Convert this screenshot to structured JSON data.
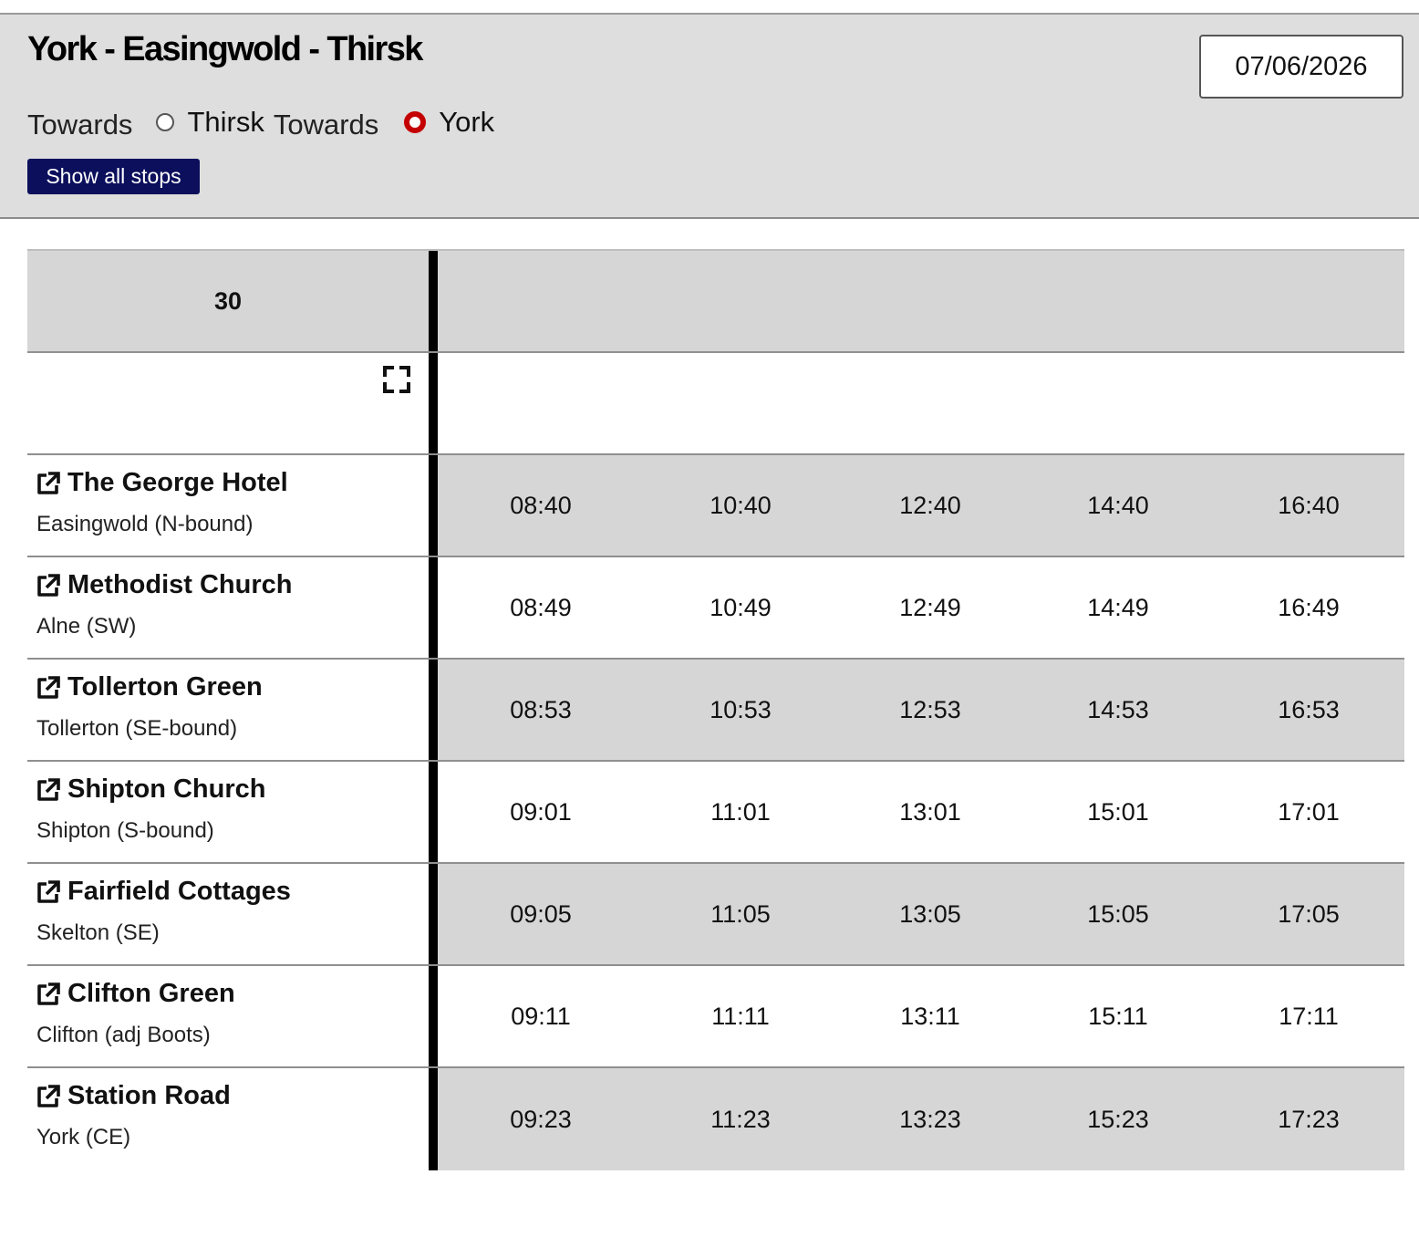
{
  "header": {
    "title": "York - Easingwold - Thirsk",
    "date_value": "07/06/2026",
    "direction_label": "Towards",
    "options": [
      {
        "label": "Thirsk",
        "selected": false
      },
      {
        "label": "York",
        "selected": true
      }
    ],
    "show_all_stops_label": "Show all stops"
  },
  "timetable": {
    "service_number": "30",
    "stops": [
      {
        "name": "The George Hotel",
        "locality": "Easingwold (N-bound)",
        "times": [
          "08:40",
          "10:40",
          "12:40",
          "14:40",
          "16:40"
        ]
      },
      {
        "name": "Methodist Church",
        "locality": "Alne (SW)",
        "times": [
          "08:49",
          "10:49",
          "12:49",
          "14:49",
          "16:49"
        ]
      },
      {
        "name": "Tollerton Green",
        "locality": "Tollerton (SE-bound)",
        "times": [
          "08:53",
          "10:53",
          "12:53",
          "14:53",
          "16:53"
        ]
      },
      {
        "name": "Shipton Church",
        "locality": "Shipton (S-bound)",
        "times": [
          "09:01",
          "11:01",
          "13:01",
          "15:01",
          "17:01"
        ]
      },
      {
        "name": "Fairfield Cottages",
        "locality": "Skelton (SE)",
        "times": [
          "09:05",
          "11:05",
          "13:05",
          "15:05",
          "17:05"
        ]
      },
      {
        "name": "Clifton Green",
        "locality": "Clifton (adj Boots)",
        "times": [
          "09:11",
          "11:11",
          "13:11",
          "15:11",
          "17:11"
        ]
      },
      {
        "name": "Station Road",
        "locality": "York (CE)",
        "times": [
          "09:23",
          "11:23",
          "13:23",
          "15:23",
          "17:23"
        ]
      }
    ]
  },
  "icons": {
    "stop_link": "external-link-icon",
    "expand": "fullscreen-icon"
  },
  "colors": {
    "button_bg": "#0b0f5c",
    "radio_selected": "#c40000",
    "shaded_row": "#d6d6d6",
    "header_bg": "#dedede"
  }
}
